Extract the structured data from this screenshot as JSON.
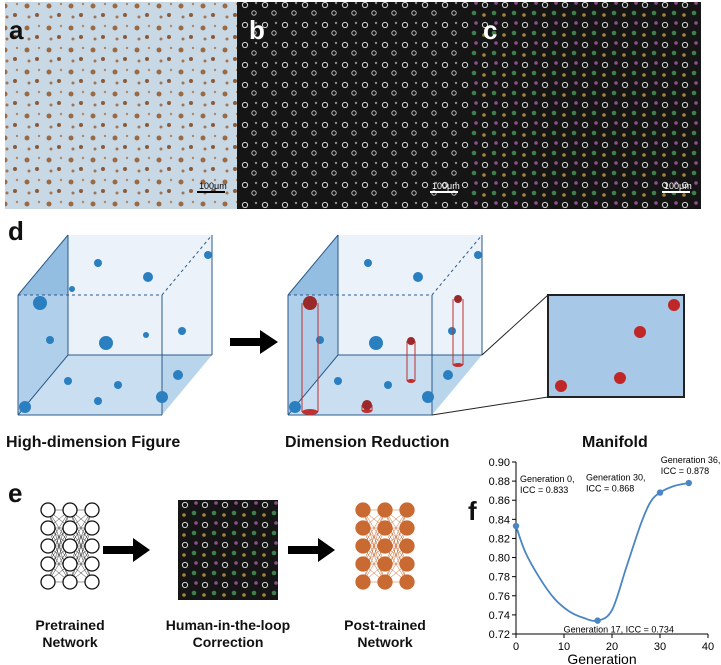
{
  "panels": {
    "a": {
      "letter": "a",
      "scale_label": "100μm"
    },
    "b": {
      "letter": "b",
      "scale_label": "100μm"
    },
    "c": {
      "letter": "c",
      "scale_label": "100μm"
    },
    "d": {
      "letter": "d",
      "labels": [
        "High-dimension Figure",
        "Dimension Reduction",
        "Manifold"
      ]
    },
    "e": {
      "letter": "e",
      "labels": [
        [
          "Pretrained",
          "Network"
        ],
        [
          "Human-in-the-loop",
          "Correction"
        ],
        [
          "Post-trained",
          "Network"
        ]
      ]
    },
    "f": {
      "letter": "f"
    }
  },
  "colors": {
    "cube_blue": "#6fa8d8",
    "point_blue": "#2a7fc0",
    "point_red": "#b02a2a",
    "line_blue": "#4a86c5",
    "network_orange": "#c96a32"
  },
  "chart_data": {
    "type": "line",
    "xlabel": "Generation",
    "ylabel": "",
    "xlim": [
      0,
      40
    ],
    "ylim": [
      0.72,
      0.9
    ],
    "xticks": [
      0,
      10,
      20,
      30,
      40
    ],
    "yticks": [
      0.72,
      0.74,
      0.76,
      0.78,
      0.8,
      0.82,
      0.84,
      0.86,
      0.88,
      0.9
    ],
    "series": [
      {
        "x": [
          0,
          2,
          5,
          8,
          11,
          14,
          17,
          20,
          23,
          26,
          28,
          30,
          33,
          36
        ],
        "y": [
          0.833,
          0.805,
          0.778,
          0.757,
          0.744,
          0.737,
          0.734,
          0.745,
          0.79,
          0.835,
          0.858,
          0.868,
          0.875,
          0.878
        ]
      }
    ],
    "markers": [
      {
        "x": 0,
        "y": 0.833,
        "label": "Generation 0,\nICC = 0.833"
      },
      {
        "x": 17,
        "y": 0.734,
        "label": "Generation 17, ICC = 0.734"
      },
      {
        "x": 30,
        "y": 0.868,
        "label": "Generation 30,\nICC = 0.868"
      },
      {
        "x": 36,
        "y": 0.878,
        "label": "Generation 36,\nICC = 0.878"
      }
    ]
  }
}
